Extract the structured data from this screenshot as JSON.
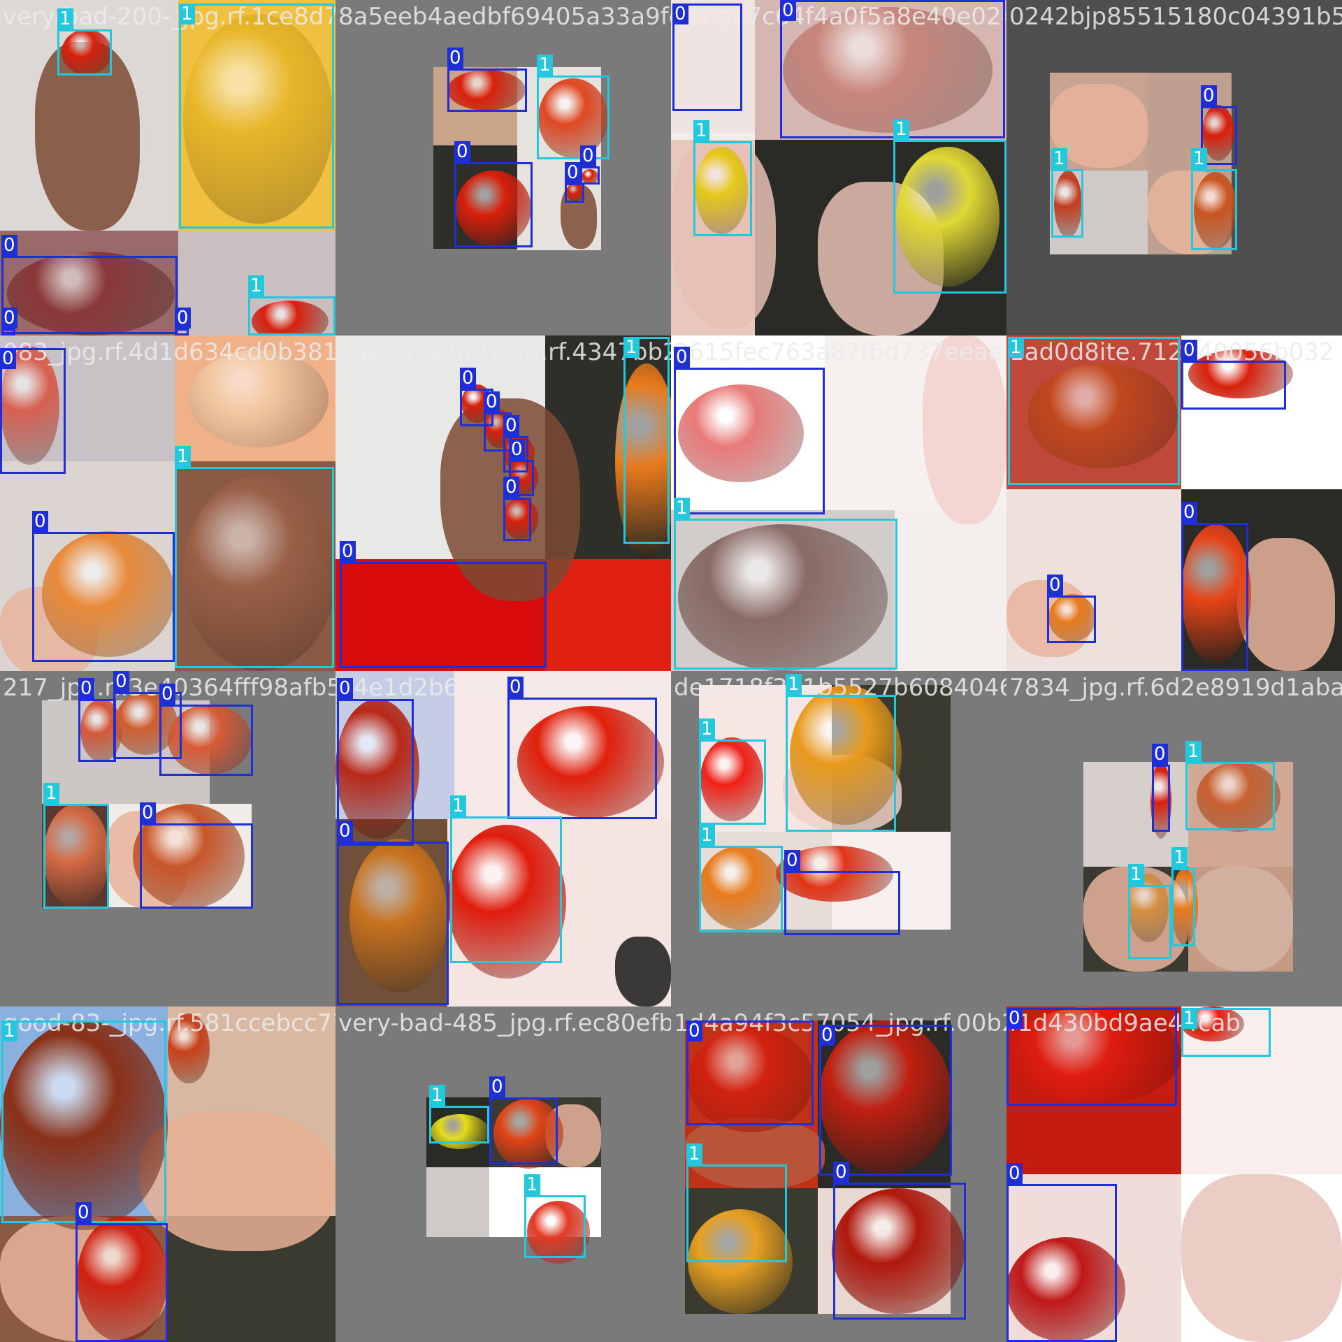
{
  "classes": {
    "0": {
      "label": "0",
      "color": "#1f2fd6"
    },
    "1": {
      "label": "1",
      "color": "#24c8dc"
    }
  },
  "colors": {
    "padding_gray": "#7a7a7a",
    "dark_gray": "#4f4f4f",
    "tomato_red": "#d8200c",
    "tomato_orange": "#e87a1c",
    "tomato_yellow": "#e6c81a",
    "skin_light": "#e8b49c",
    "skin_dark": "#7b4a34",
    "sky_dark": "#2a2a26",
    "wall_light": "#e9e6e4"
  },
  "cells": [
    {
      "filename": "very-bad-200-_jpg.rf.1ce8d7865516594edbf69405a33a9fd0423",
      "tags": [
        "1",
        "1",
        "0",
        "0",
        "0",
        "1"
      ]
    },
    {
      "filename": "8a5eeb4aedbf69405a33a9fd04",
      "tags": [
        "0",
        "1",
        "0",
        "0",
        "0"
      ]
    },
    {
      "filename": "3c6a47c64f4a0f5a8e40e0242_jpg.rf.3c6a47c6441940f5a8e40e02",
      "tags": [
        "0",
        "0",
        "1",
        "1"
      ]
    },
    {
      "filename": "0242bjp85515180c04391b5",
      "tags": [
        "0",
        "1",
        "1"
      ]
    },
    {
      "filename": "083_jpg.rf.4d1d634cd0b3812a03f7a8810704",
      "tags": [
        "0",
        "1",
        "0"
      ]
    },
    {
      "filename": "2aeyb7a88070fg.rf.4347bb261",
      "tags": [
        "1",
        "0",
        "0",
        "0",
        "0",
        "0",
        "0"
      ]
    },
    {
      "filename": "2615fec763a87f6d737eeaeb5d0d8",
      "tags": [
        "0",
        "1"
      ]
    },
    {
      "filename": "1ad0d8ite.712540056b032",
      "tags": [
        "1",
        "0",
        "0",
        "0"
      ]
    },
    {
      "filename": "217_jpg.rf.3e40364fff98afb5b4e1d2b629",
      "tags": [
        "0",
        "0",
        "0",
        "1",
        "0"
      ]
    },
    {
      "filename": "b4e1d2b629ed9e780273de1718",
      "tags": [
        "0",
        "0",
        "0",
        "1"
      ]
    },
    {
      "filename": "de1718f361b5527b6084046783",
      "tags": [
        "1",
        "1",
        "1",
        "0"
      ]
    },
    {
      "filename": "7834_jpg.rf.6d2e8919d1abacc",
      "tags": [
        "0",
        "1",
        "1",
        "1"
      ]
    },
    {
      "filename": "good-83-_jpg.rf.581ccebcc7703394d1485",
      "tags": [
        "1",
        "0"
      ]
    },
    {
      "filename": "very-bad-485_jpg.rf.ec80efb1a94f3c",
      "tags": [
        "1",
        "0",
        "1"
      ]
    },
    {
      "filename": "1d4a94f3c57054_jpg.rf.00b27f1d430b",
      "tags": [
        "0",
        "0",
        "0",
        "1"
      ]
    },
    {
      "filename": "f1d430bd9ae44cab",
      "tags": [
        "0",
        "1",
        "0"
      ]
    }
  ]
}
